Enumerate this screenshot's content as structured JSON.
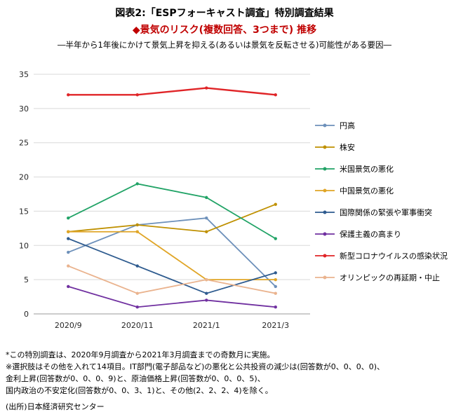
{
  "title": {
    "line1": "図表2:「ESPフォーキャスト調査」特別調査結果",
    "line2": "◆景気のリスク(複数回答、3つまで) 推移",
    "line3": "―半年から1年後にかけて景気上昇を抑える(あるいは景気を反転させる)可能性がある要因―"
  },
  "chart_data": {
    "type": "line",
    "categories": [
      "2020/9",
      "2020/11",
      "2021/1",
      "2021/3"
    ],
    "ylim": [
      0,
      35
    ],
    "ytick_interval": 5,
    "grid": true,
    "legend_position": "right",
    "series": [
      {
        "name": "円高",
        "color": "#6d90ba",
        "width": 1.8,
        "values": [
          9,
          13,
          14,
          4
        ]
      },
      {
        "name": "株安",
        "color": "#bf9000",
        "width": 1.8,
        "values": [
          12,
          13,
          12,
          16
        ]
      },
      {
        "name": "米国景気の悪化",
        "color": "#21a366",
        "width": 1.8,
        "values": [
          14,
          19,
          17,
          11
        ]
      },
      {
        "name": "中国景気の悪化",
        "color": "#e0a526",
        "width": 1.8,
        "values": [
          12,
          12,
          5,
          5
        ]
      },
      {
        "name": "国際関係の緊張や軍事衝突",
        "color": "#2e5b8f",
        "width": 1.8,
        "values": [
          11,
          7,
          3,
          6
        ]
      },
      {
        "name": "保護主義の高まり",
        "color": "#7030a0",
        "width": 1.8,
        "values": [
          4,
          1,
          2,
          1
        ]
      },
      {
        "name": "新型コロナウイルスの感染状況",
        "color": "#e02427",
        "width": 2.4,
        "values": [
          32,
          32,
          33,
          32
        ]
      },
      {
        "name": "オリンピックの再延期・中止",
        "color": "#eab38e",
        "width": 1.8,
        "values": [
          7,
          3,
          5,
          3
        ]
      }
    ]
  },
  "footnotes": [
    "*この特別調査は、2020年9月調査から2021年3月調査までの奇数月に実施。",
    "※選択肢はその他を入れて14項目。IT部門(電子部品など)の悪化と公共投資の減少は(回答数が0、0、0、0)、",
    "金利上昇(回答数が0、0、0、9)と、原油価格上昇(回答数が0、0、0、5)、",
    "国内政治の不安定化(回答数が0、0、3、1)と、その他(2、2、2、4)を除く。"
  ],
  "source": "(出所)日本経済研究センター"
}
